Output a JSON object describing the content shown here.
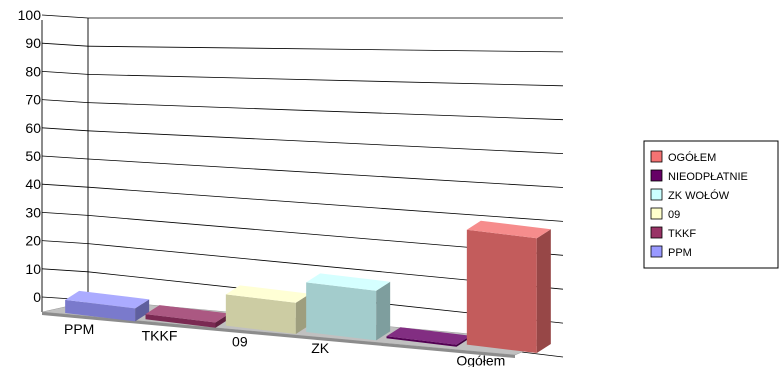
{
  "chart_data": {
    "type": "bar",
    "style": "3d-column",
    "categories": [
      "PPM",
      "TKKF",
      "09",
      "ZK",
      "NIEODPŁATNIE",
      "Ogółem"
    ],
    "values": [
      5,
      2,
      12,
      19,
      0.3,
      44
    ],
    "category_labels_shown": [
      "PPM",
      "TKKF",
      "09",
      "ZK",
      "",
      "Ogółem"
    ],
    "ylim": [
      0,
      100
    ],
    "yticks": [
      0,
      10,
      20,
      30,
      40,
      50,
      60,
      70,
      80,
      90,
      100
    ],
    "grid": true,
    "legend_position": "right",
    "legend": [
      {
        "label": "OGÓŁEM",
        "color": "#f47373"
      },
      {
        "label": "NIEODPŁATNIE",
        "color": "#660066"
      },
      {
        "label": "ZK WOŁÓW",
        "color": "#ccffff"
      },
      {
        "label": "09",
        "color": "#ffffcc"
      },
      {
        "label": "TKKF",
        "color": "#993366"
      },
      {
        "label": "PPM",
        "color": "#9999ff"
      }
    ],
    "bar_colors": [
      "#9999ff",
      "#993366",
      "#ffffcc",
      "#ccffff",
      "#660066",
      "#f47373"
    ]
  }
}
